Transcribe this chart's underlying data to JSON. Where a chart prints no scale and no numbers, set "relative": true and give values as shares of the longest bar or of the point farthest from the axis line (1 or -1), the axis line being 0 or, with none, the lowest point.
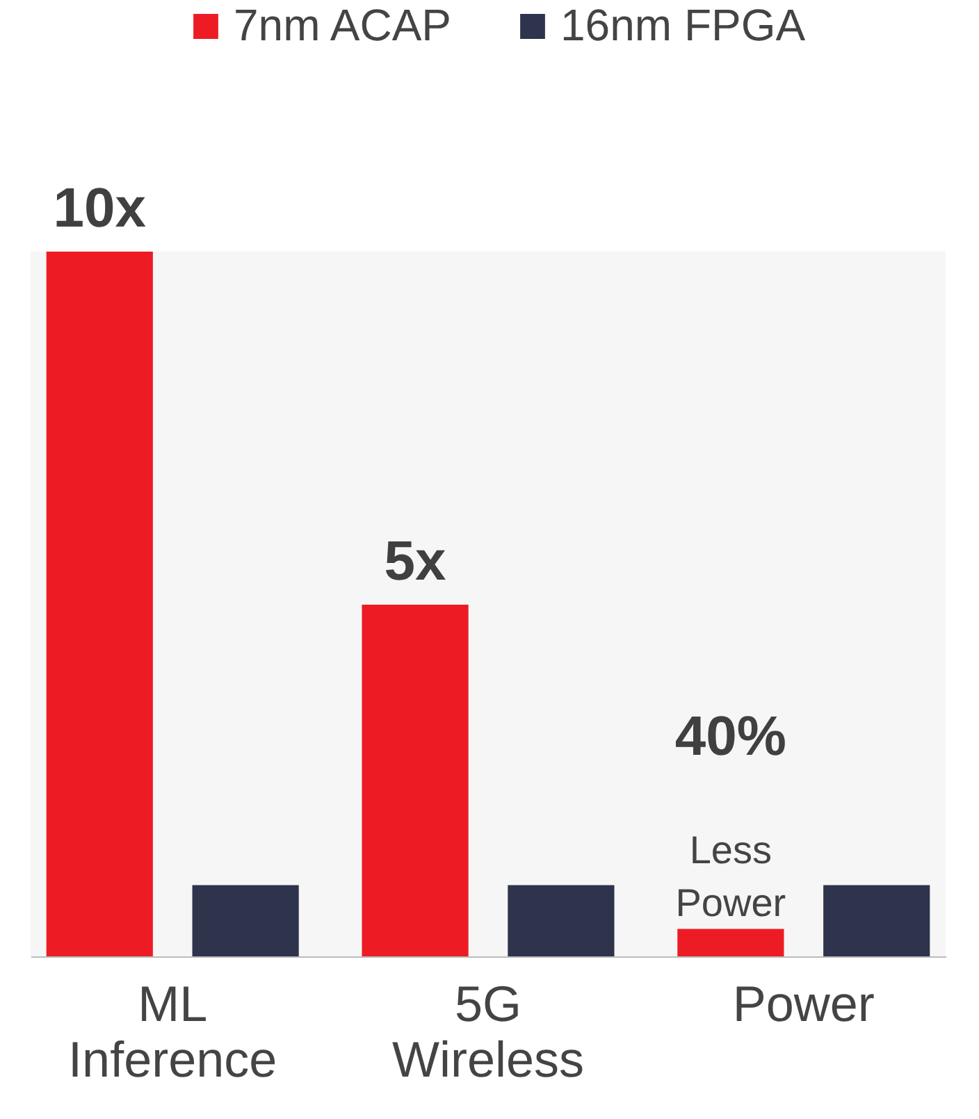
{
  "chart_data": {
    "type": "bar",
    "relative": true,
    "categories": [
      "ML Inference",
      "5G Wireless",
      "Power"
    ],
    "series": [
      {
        "name": "7nm ACAP",
        "color": "#ed1c24",
        "values": [
          1,
          0.499,
          0.039
        ]
      },
      {
        "name": "16nm FPGA",
        "color": "#2e344b",
        "values": [
          0.101,
          0.101,
          0.101
        ]
      }
    ],
    "annotations": [
      "10x",
      "5x",
      "40%",
      "Less Power"
    ],
    "legend": "top",
    "grid": false
  }
}
